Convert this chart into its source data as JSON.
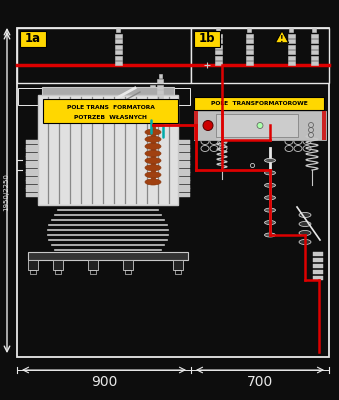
{
  "bg_color": "#0d0d0d",
  "white": "#e8e8e8",
  "black": "#000000",
  "yellow": "#FFD700",
  "red": "#DD0000",
  "dark_gray": "#222222",
  "light_gray": "#c8c8c8",
  "mid_gray": "#888888",
  "dark2": "#444444",
  "brown": "#8B3A10",
  "brown2": "#A04010",
  "cyan": "#00AAAA",
  "label_1a": "1a",
  "label_1b": "1b",
  "text_pole1a_line1": "POLE TRANS  FORMATORA",
  "text_pole1a_line2": "POTRZEB  WŁASNYCH",
  "text_pole1b": "POLE  TRANSFORMATOROWE",
  "dim_height": "1950/2250",
  "dim_width1": "900",
  "dim_width2": "700",
  "figsize": [
    3.39,
    4.0
  ],
  "dpi": 100
}
